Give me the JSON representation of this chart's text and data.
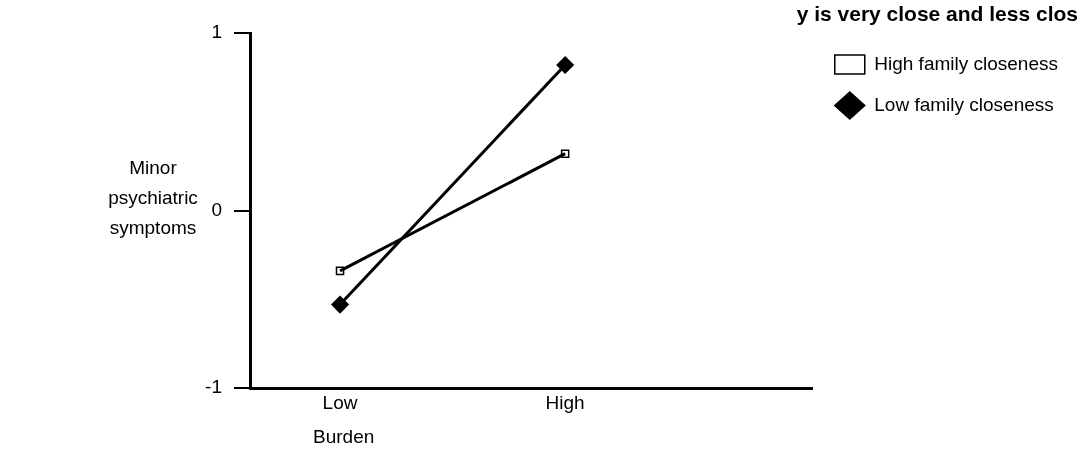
{
  "chart_data": {
    "type": "line",
    "title": "y is very close and less clos",
    "xlabel": "Burden",
    "ylabel": "Minor psychiatric symptoms",
    "categories": [
      "Low",
      "High"
    ],
    "series": [
      {
        "name": "High family closeness",
        "color": "#000000",
        "marker": "square",
        "values": [
          -0.34,
          0.32
        ]
      },
      {
        "name": "Low family closeness",
        "color": "#000000",
        "marker": "diamond",
        "values": [
          -0.53,
          0.82
        ]
      }
    ],
    "ylim": [
      -1,
      1
    ],
    "yticks": [
      -1,
      0,
      1
    ],
    "grid": false,
    "legend": "top right"
  }
}
